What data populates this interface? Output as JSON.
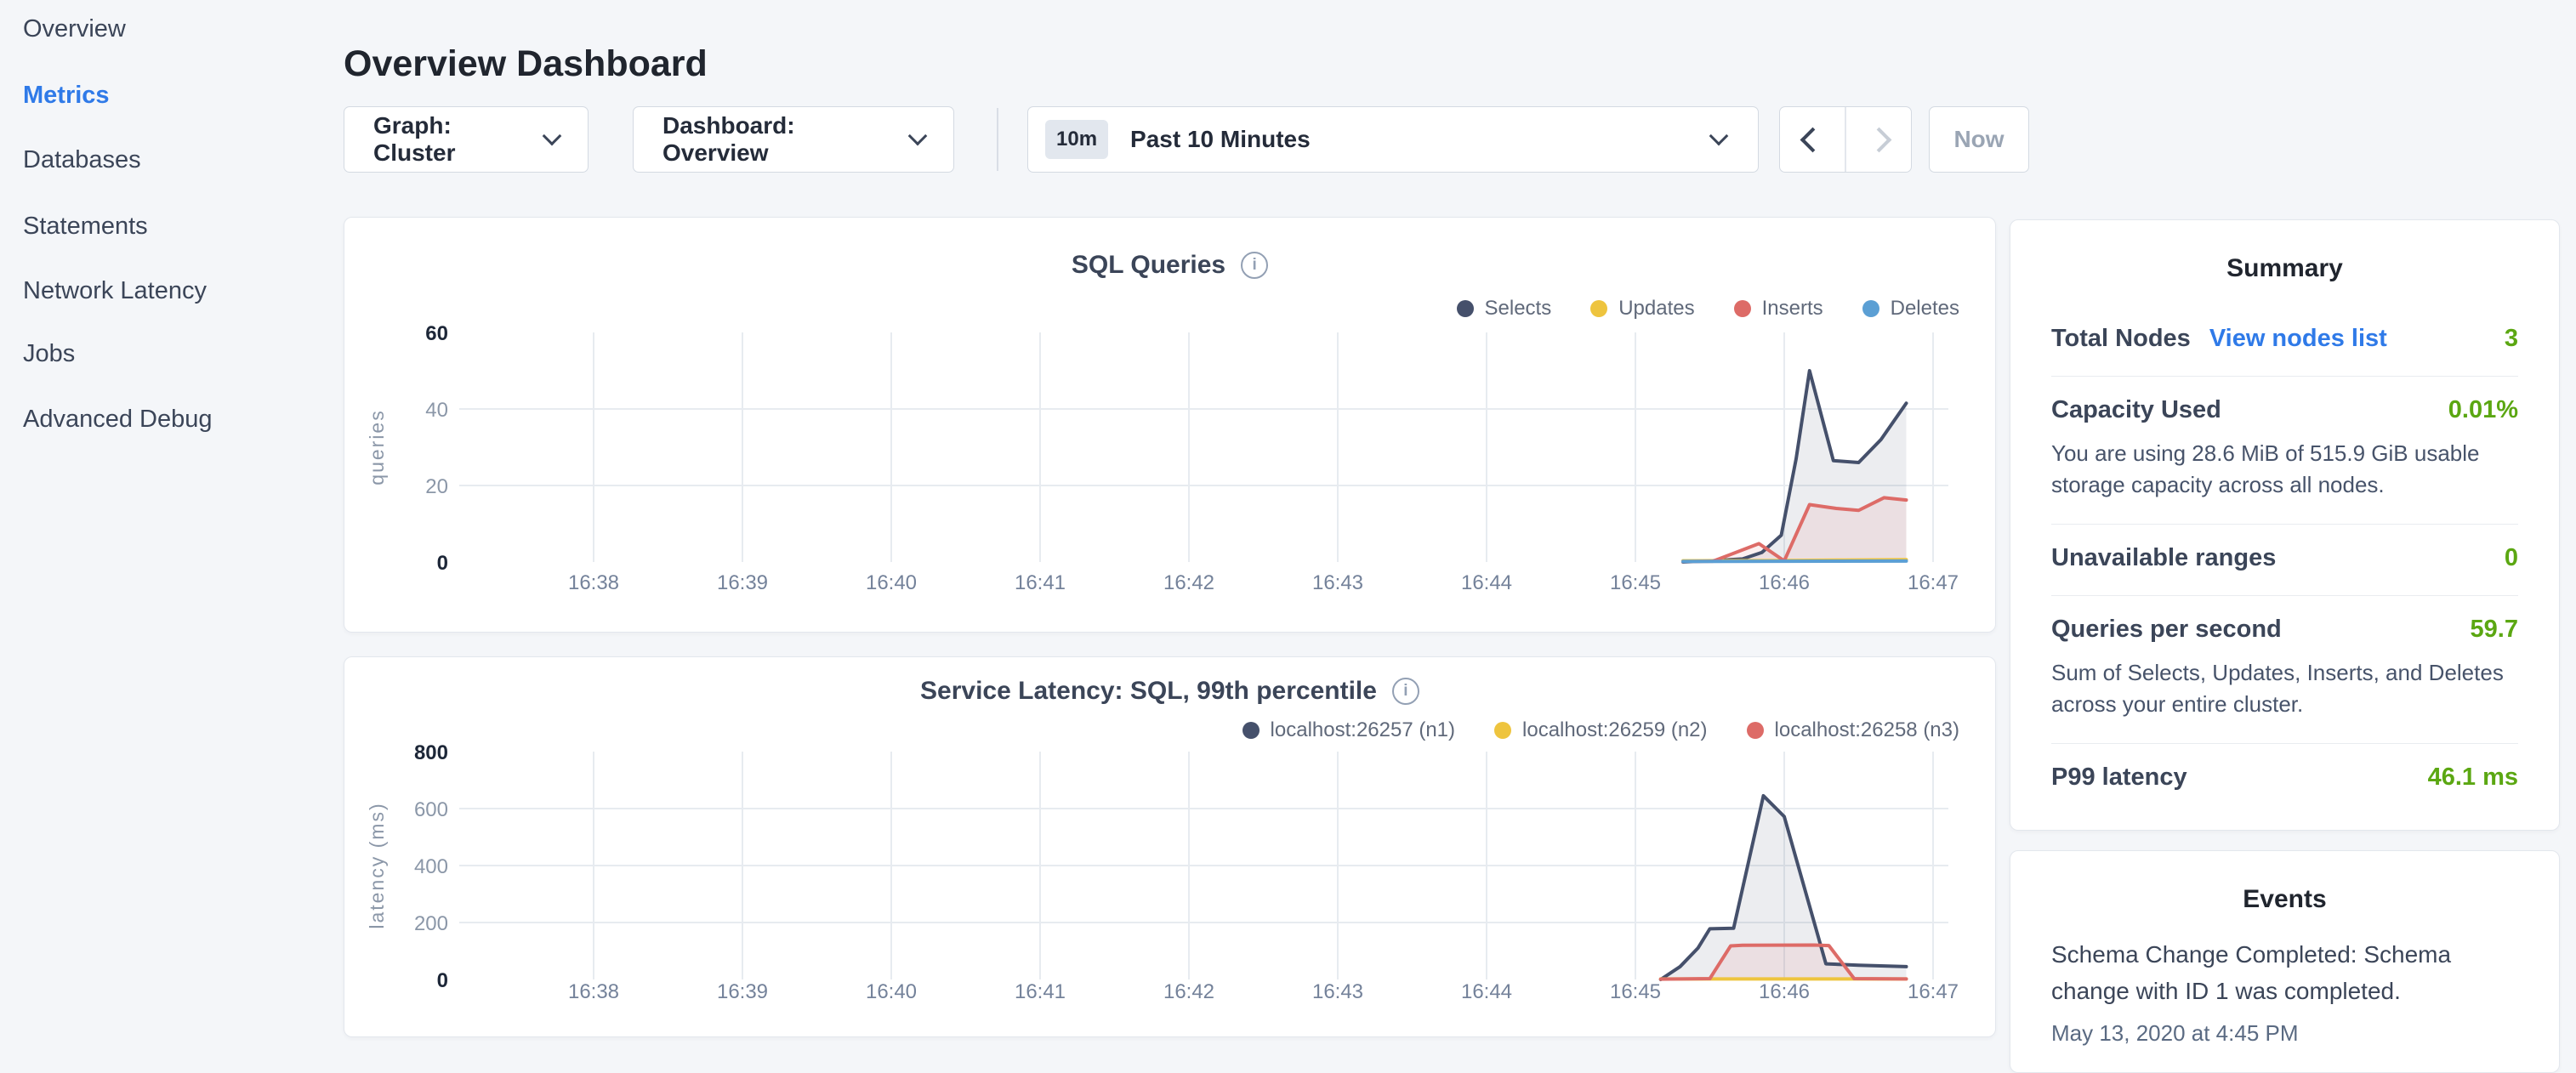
{
  "page": {
    "title": "Overview Dashboard"
  },
  "sidebar": {
    "items": [
      {
        "label": "Overview",
        "active": false
      },
      {
        "label": "Metrics",
        "active": true
      },
      {
        "label": "Databases",
        "active": false
      },
      {
        "label": "Statements",
        "active": false
      },
      {
        "label": "Network Latency",
        "active": false
      },
      {
        "label": "Jobs",
        "active": false
      },
      {
        "label": "Advanced Debug",
        "active": false
      }
    ]
  },
  "toolbar": {
    "graph_dropdown": "Graph: Cluster",
    "dashboard_dropdown": "Dashboard: Overview",
    "time_range_badge": "10m",
    "time_range_label": "Past 10 Minutes",
    "now_button": "Now"
  },
  "summary": {
    "title": "Summary",
    "accent_green": "#5ba712",
    "link_blue": "#2f7ae8",
    "rows": [
      {
        "label": "Total Nodes",
        "link": "View nodes list",
        "value": "3"
      },
      {
        "label": "Capacity Used",
        "value": "0.01%",
        "description": "You are using 28.6 MiB of 515.9 GiB usable storage capacity across all nodes."
      },
      {
        "label": "Unavailable ranges",
        "value": "0"
      },
      {
        "label": "Queries per second",
        "value": "59.7",
        "description": "Sum of Selects, Updates, Inserts, and Deletes across your entire cluster."
      },
      {
        "label": "P99 latency",
        "value": "46.1 ms"
      }
    ]
  },
  "events": {
    "title": "Events",
    "items": [
      {
        "message": "Schema Change Completed: Schema change with ID 1 was completed.",
        "timestamp": "May 13, 2020 at 4:45 PM"
      }
    ]
  },
  "chart_data": [
    {
      "type": "area",
      "title": "SQL Queries",
      "ylabel": "queries",
      "ylim": [
        0,
        60
      ],
      "y_ticks": [
        0,
        20,
        40,
        60
      ],
      "x_ticks": [
        "16:38",
        "16:39",
        "16:40",
        "16:41",
        "16:42",
        "16:43",
        "16:44",
        "16:45",
        "16:46",
        "16:47"
      ],
      "x_unit": "minutes since 16:38",
      "grid": true,
      "legend_position": "top-right",
      "series": [
        {
          "name": "Selects",
          "color": "#45506b",
          "fill": true,
          "points": [
            [
              7.32,
              0
            ],
            [
              7.55,
              0.4
            ],
            [
              7.72,
              0.8
            ],
            [
              7.85,
              2.5
            ],
            [
              7.98,
              7
            ],
            [
              8.08,
              27
            ],
            [
              8.17,
              50
            ],
            [
              8.33,
              26.5
            ],
            [
              8.5,
              26
            ],
            [
              8.65,
              32
            ],
            [
              8.82,
              41.5
            ]
          ]
        },
        {
          "name": "Updates",
          "color": "#eec43e",
          "fill": true,
          "points": [
            [
              7.32,
              0.3
            ],
            [
              8.0,
              0.4
            ],
            [
              8.4,
              0.5
            ],
            [
              8.82,
              0.6
            ]
          ]
        },
        {
          "name": "Inserts",
          "color": "#dd6b67",
          "fill": true,
          "points": [
            [
              7.32,
              0.1
            ],
            [
              7.52,
              0.2
            ],
            [
              7.83,
              4.8
            ],
            [
              8.0,
              0.3
            ],
            [
              8.17,
              15
            ],
            [
              8.35,
              14
            ],
            [
              8.5,
              13.5
            ],
            [
              8.67,
              16.8
            ],
            [
              8.82,
              16.2
            ]
          ]
        },
        {
          "name": "Deletes",
          "color": "#5b9fd4",
          "fill": true,
          "points": [
            [
              7.32,
              0.15
            ],
            [
              8.82,
              0.25
            ]
          ]
        }
      ]
    },
    {
      "type": "area",
      "title": "Service Latency: SQL, 99th percentile",
      "ylabel": "latency (ms)",
      "ylim": [
        0,
        800
      ],
      "y_ticks": [
        0,
        200,
        400,
        600,
        800
      ],
      "x_ticks": [
        "16:38",
        "16:39",
        "16:40",
        "16:41",
        "16:42",
        "16:43",
        "16:44",
        "16:45",
        "16:46",
        "16:47"
      ],
      "x_unit": "minutes since 16:38",
      "grid": true,
      "legend_position": "top-right",
      "series": [
        {
          "name": "localhost:26257 (n1)",
          "color": "#45506b",
          "fill": true,
          "points": [
            [
              7.17,
              0
            ],
            [
              7.3,
              45
            ],
            [
              7.42,
              110
            ],
            [
              7.5,
              178
            ],
            [
              7.66,
              180
            ],
            [
              7.86,
              645
            ],
            [
              8.0,
              572
            ],
            [
              8.28,
              55
            ],
            [
              8.5,
              50
            ],
            [
              8.82,
              45
            ]
          ]
        },
        {
          "name": "localhost:26259 (n2)",
          "color": "#eec43e",
          "fill": true,
          "points": [
            [
              7.17,
              2
            ],
            [
              8.82,
              2
            ]
          ]
        },
        {
          "name": "localhost:26258 (n3)",
          "color": "#dd6b67",
          "fill": true,
          "points": [
            [
              7.17,
              1
            ],
            [
              7.5,
              3
            ],
            [
              7.64,
              118
            ],
            [
              7.72,
              120
            ],
            [
              8.2,
              121
            ],
            [
              8.3,
              119
            ],
            [
              8.47,
              3
            ],
            [
              8.82,
              2
            ]
          ]
        }
      ]
    }
  ]
}
